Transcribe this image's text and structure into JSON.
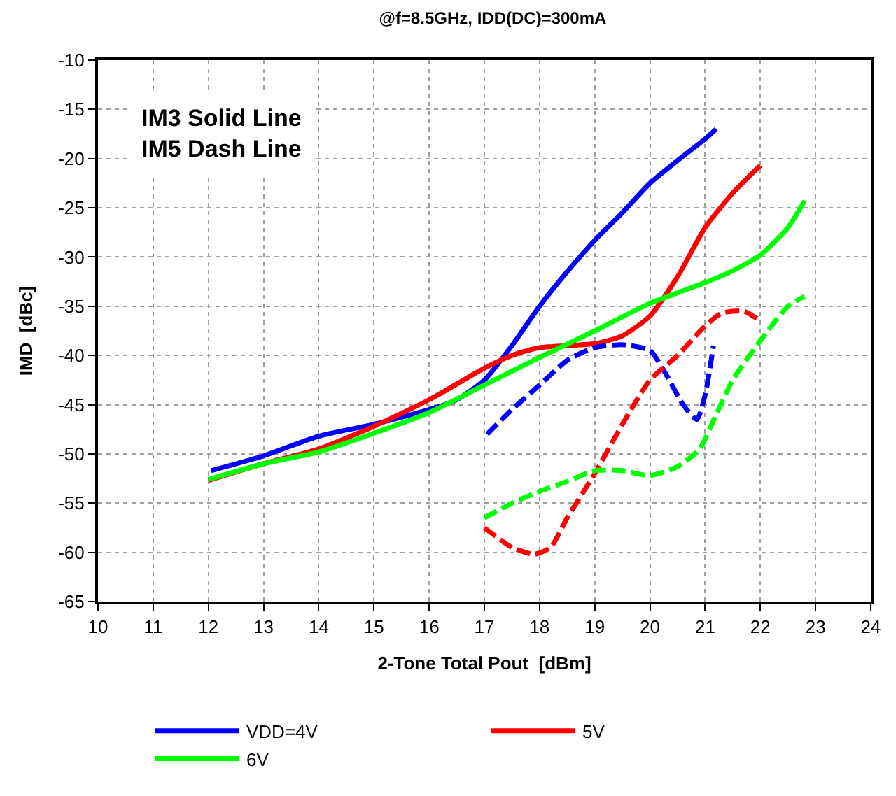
{
  "chart_data": {
    "type": "line",
    "title": "@f=8.5GHz, IDD(DC)=300mA",
    "xlabel": "2-Tone Total Pout  [dBm]",
    "ylabel": "IMD  [dBc]",
    "annotations": [
      "IM3 Solid Line\nIM5 Dash Line"
    ],
    "xlim": [
      10,
      24
    ],
    "xticks": [
      10,
      11,
      12,
      13,
      14,
      15,
      16,
      17,
      18,
      19,
      20,
      21,
      22,
      23,
      24
    ],
    "ylim": [
      -65,
      -10
    ],
    "yticks": [
      -65,
      -60,
      -55,
      -50,
      -45,
      -40,
      -35,
      -30,
      -25,
      -20,
      -15,
      -10
    ],
    "grid": true,
    "legend": "bottom",
    "marker": "none",
    "series": [
      {
        "name": "VDD=4V",
        "color": "#0000ff",
        "line_style": "solid",
        "x": [
          12.05,
          13,
          14,
          15,
          16,
          16.5,
          17,
          17.5,
          18,
          18.5,
          19,
          19.5,
          20,
          20.5,
          21,
          21.2
        ],
        "values": [
          -51.7,
          -50.2,
          -48.2,
          -47,
          -45.5,
          -44.5,
          -42.5,
          -39,
          -35,
          -31.5,
          -28.3,
          -25.5,
          -22.5,
          -20.2,
          -18,
          -17
        ]
      },
      {
        "name": "5V",
        "color": "#ff0000",
        "line_style": "solid",
        "x": [
          12,
          13,
          14,
          15,
          16,
          17,
          17.5,
          18,
          18.5,
          19,
          19.5,
          20,
          20.5,
          21,
          21.5,
          22
        ],
        "values": [
          -52.7,
          -51,
          -49.5,
          -47.2,
          -44.5,
          -41.3,
          -40,
          -39.2,
          -39,
          -38.8,
          -38,
          -36,
          -32,
          -27,
          -23.5,
          -20.7
        ]
      },
      {
        "name": "6V",
        "color": "#00ff00",
        "line_style": "solid",
        "x": [
          12,
          13,
          14,
          15,
          16,
          17,
          18,
          19,
          20,
          21,
          21.5,
          22,
          22.5,
          22.8
        ],
        "values": [
          -52.6,
          -51,
          -49.8,
          -47.9,
          -45.8,
          -43,
          -40.2,
          -37.5,
          -34.7,
          -32.6,
          -31.4,
          -29.8,
          -27,
          -24.3
        ]
      },
      {
        "color": "#0000ff",
        "line_style": "dashed",
        "x": [
          17.05,
          17.5,
          18,
          18.5,
          19,
          19.5,
          20,
          20.3,
          20.6,
          20.85,
          21,
          21.15
        ],
        "values": [
          -48,
          -45.5,
          -43,
          -40.5,
          -39.2,
          -38.9,
          -39.5,
          -42,
          -45,
          -46.5,
          -44,
          -39
        ]
      },
      {
        "color": "#ff0000",
        "line_style": "dashed",
        "x": [
          17,
          17.5,
          17.9,
          18.2,
          18.5,
          19,
          19.5,
          20,
          20.5,
          21,
          21.3,
          21.7,
          22
        ],
        "values": [
          -57.5,
          -59.5,
          -60.2,
          -59.5,
          -56.5,
          -52,
          -47,
          -42.5,
          -40,
          -37,
          -35.7,
          -35.5,
          -36.5
        ]
      },
      {
        "color": "#00ff00",
        "line_style": "dashed",
        "x": [
          17,
          17.5,
          18,
          18.5,
          19,
          19.5,
          20,
          20.5,
          20.9,
          21.2,
          21.5,
          22,
          22.5,
          22.8
        ],
        "values": [
          -56.5,
          -55,
          -53.8,
          -52.8,
          -51.7,
          -51.7,
          -52.2,
          -51.3,
          -49.5,
          -46,
          -42.5,
          -38.5,
          -35,
          -34
        ]
      }
    ]
  }
}
